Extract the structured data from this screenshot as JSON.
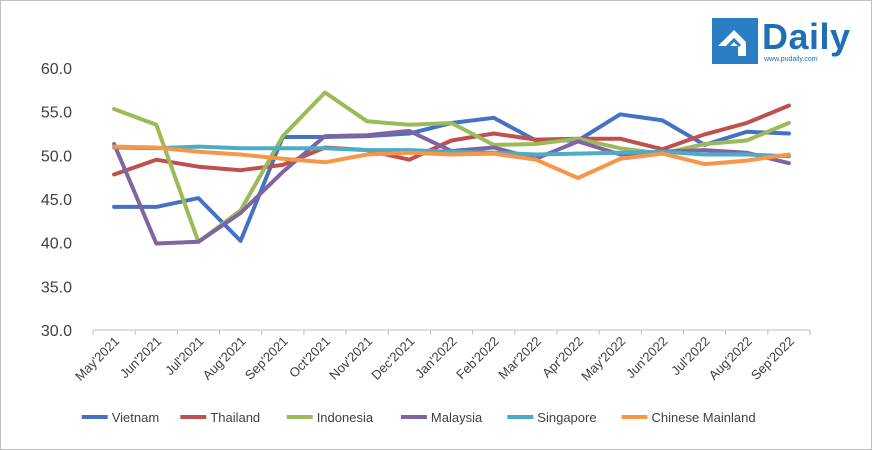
{
  "logo": {
    "text": "Daily",
    "url": "www.pudaily.com"
  },
  "chart_data": {
    "type": "line",
    "title": "",
    "xlabel": "",
    "ylabel": "",
    "ylim": [
      30,
      60
    ],
    "yticks": [
      "30.0",
      "35.0",
      "40.0",
      "45.0",
      "50.0",
      "55.0",
      "60.0"
    ],
    "grid": false,
    "legend_position": "bottom",
    "categories": [
      "May'2021",
      "Jun'2021",
      "Jul'2021",
      "Aug'2021",
      "Sep'2021",
      "Oct'2021",
      "Nov'2021",
      "Dec'2021",
      "Jan'2022",
      "Feb'2022",
      "Mar'2022",
      "Apr'2022",
      "May'2022",
      "Jun'2022",
      "Jul'2022",
      "Aug'2022",
      "Sep'2022"
    ],
    "series": [
      {
        "name": "Vietnam",
        "color": "#4472c4",
        "values": [
          44.1,
          44.1,
          45.1,
          40.2,
          52.1,
          52.1,
          52.2,
          52.5,
          53.7,
          54.3,
          51.7,
          51.7,
          54.7,
          54.0,
          51.2,
          52.7,
          52.5
        ]
      },
      {
        "name": "Thailand",
        "color": "#c0504d",
        "values": [
          47.8,
          49.5,
          48.7,
          48.3,
          48.9,
          50.9,
          50.6,
          49.5,
          51.7,
          52.5,
          51.8,
          51.9,
          51.9,
          50.7,
          52.4,
          53.7,
          55.7
        ]
      },
      {
        "name": "Indonesia",
        "color": "#9bbb59",
        "values": [
          55.3,
          53.5,
          40.1,
          43.7,
          52.2,
          57.2,
          53.9,
          53.5,
          53.7,
          51.2,
          51.3,
          51.9,
          50.8,
          50.2,
          51.3,
          51.7,
          53.7
        ]
      },
      {
        "name": "Malaysia",
        "color": "#8064a2",
        "values": [
          51.3,
          39.9,
          40.1,
          43.4,
          48.1,
          52.2,
          52.3,
          52.8,
          50.5,
          50.9,
          49.6,
          51.6,
          50.1,
          50.4,
          50.6,
          50.3,
          49.1
        ]
      },
      {
        "name": "Singapore",
        "color": "#4bacc6",
        "values": [
          50.9,
          50.8,
          51.0,
          50.8,
          50.8,
          50.8,
          50.6,
          50.6,
          50.4,
          50.3,
          50.1,
          50.2,
          50.3,
          50.4,
          50.1,
          50.1,
          49.9
        ]
      },
      {
        "name": "Chinese Mainland",
        "color": "#f79646",
        "values": [
          51.0,
          50.9,
          50.4,
          50.1,
          49.6,
          49.2,
          50.1,
          50.3,
          50.1,
          50.2,
          49.5,
          47.4,
          49.6,
          50.2,
          49.0,
          49.4,
          50.1
        ]
      }
    ]
  }
}
